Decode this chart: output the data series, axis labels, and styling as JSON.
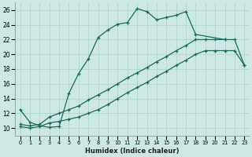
{
  "xlabel": "Humidex (Indice chaleur)",
  "bg_color": "#cde8e4",
  "grid_color": "#b0d4ce",
  "line_color": "#1a6b5a",
  "xlim": [
    -0.5,
    23.5
  ],
  "ylim": [
    9.0,
    27.0
  ],
  "xticks": [
    0,
    1,
    2,
    3,
    4,
    5,
    6,
    7,
    8,
    9,
    10,
    11,
    12,
    13,
    14,
    15,
    16,
    17,
    18,
    19,
    20,
    21,
    22,
    23
  ],
  "yticks": [
    10,
    12,
    14,
    16,
    18,
    20,
    22,
    24,
    26
  ],
  "line1_x": [
    0,
    1,
    2,
    3,
    4,
    5,
    6,
    7,
    8,
    9,
    10,
    11,
    12,
    13,
    14,
    15,
    16,
    17,
    18,
    21
  ],
  "line1_y": [
    12.5,
    10.8,
    10.3,
    10.1,
    10.2,
    14.7,
    17.4,
    19.4,
    22.3,
    23.3,
    24.1,
    24.3,
    26.2,
    25.8,
    24.7,
    25.0,
    25.3,
    25.8,
    22.7,
    22.0
  ],
  "line2_x": [
    0,
    1,
    2,
    3,
    4,
    5,
    6,
    7,
    8,
    9,
    10,
    11,
    12,
    13,
    14,
    15,
    16,
    17,
    18,
    19,
    20,
    21,
    22,
    23
  ],
  "line2_y": [
    10.5,
    10.3,
    10.5,
    11.5,
    12.0,
    12.5,
    13.0,
    13.8,
    14.5,
    15.2,
    16.0,
    16.8,
    17.5,
    18.2,
    19.0,
    19.7,
    20.5,
    21.2,
    22.0,
    22.0,
    22.0,
    22.0,
    22.0,
    18.5
  ],
  "line3_x": [
    0,
    1,
    2,
    3,
    4,
    5,
    6,
    7,
    8,
    9,
    10,
    11,
    12,
    13,
    14,
    15,
    16,
    17,
    18,
    19,
    20,
    21,
    22,
    23
  ],
  "line3_y": [
    10.2,
    10.0,
    10.2,
    10.7,
    10.9,
    11.2,
    11.5,
    12.0,
    12.5,
    13.2,
    14.0,
    14.8,
    15.5,
    16.2,
    17.0,
    17.7,
    18.5,
    19.2,
    20.0,
    20.5,
    20.5,
    20.5,
    20.5,
    18.5
  ]
}
